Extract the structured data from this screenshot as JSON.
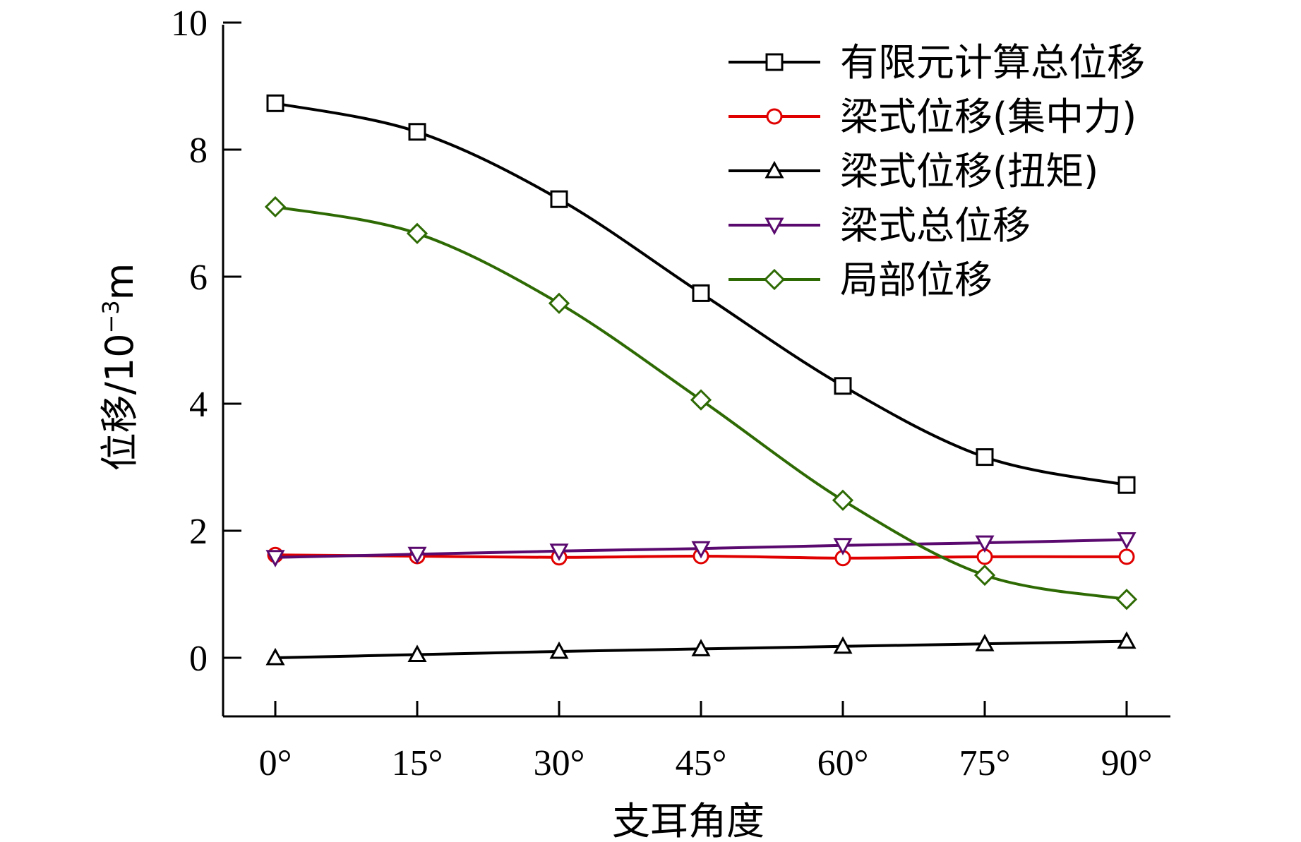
{
  "chart_data": {
    "type": "line",
    "xlabel": "支耳角度",
    "ylabel": "位移/10",
    "ylabel_exponent": "−3",
    "ylabel_unit": "m",
    "x_tick_labels": [
      "0°",
      "15°",
      "30°",
      "45°",
      "60°",
      "75°",
      "90°"
    ],
    "y_ticks": [
      0,
      2,
      4,
      6,
      8,
      10
    ],
    "ylim": [
      -1,
      10
    ],
    "grid": false,
    "legend_position": "top-right",
    "series": [
      {
        "name": "有限元计算总位移",
        "marker": "square",
        "color": "#000000",
        "x": [
          0,
          15,
          30,
          45,
          60,
          75,
          90
        ],
        "values": [
          8.73,
          8.28,
          7.22,
          5.74,
          4.28,
          3.16,
          2.72
        ]
      },
      {
        "name": "梁式位移(集中力)",
        "marker": "circle",
        "color": "#e00000",
        "x": [
          0,
          15,
          30,
          45,
          60,
          75,
          90
        ],
        "values": [
          1.62,
          1.6,
          1.58,
          1.6,
          1.57,
          1.59,
          1.59
        ]
      },
      {
        "name": "梁式位移(扭矩)",
        "marker": "triangle-up",
        "color": "#000000",
        "x": [
          0,
          15,
          30,
          45,
          60,
          75,
          90
        ],
        "values": [
          0.0,
          0.05,
          0.1,
          0.14,
          0.18,
          0.22,
          0.26
        ]
      },
      {
        "name": "梁式总位移",
        "marker": "triangle-down",
        "color": "#5a0a6e",
        "x": [
          0,
          15,
          30,
          45,
          60,
          75,
          90
        ],
        "values": [
          1.58,
          1.63,
          1.68,
          1.72,
          1.77,
          1.81,
          1.86
        ]
      },
      {
        "name": "局部位移",
        "marker": "diamond",
        "color": "#2e6a04",
        "x": [
          0,
          15,
          30,
          45,
          60,
          75,
          90
        ],
        "values": [
          7.1,
          6.68,
          5.58,
          4.06,
          2.48,
          1.3,
          0.92
        ]
      }
    ]
  }
}
